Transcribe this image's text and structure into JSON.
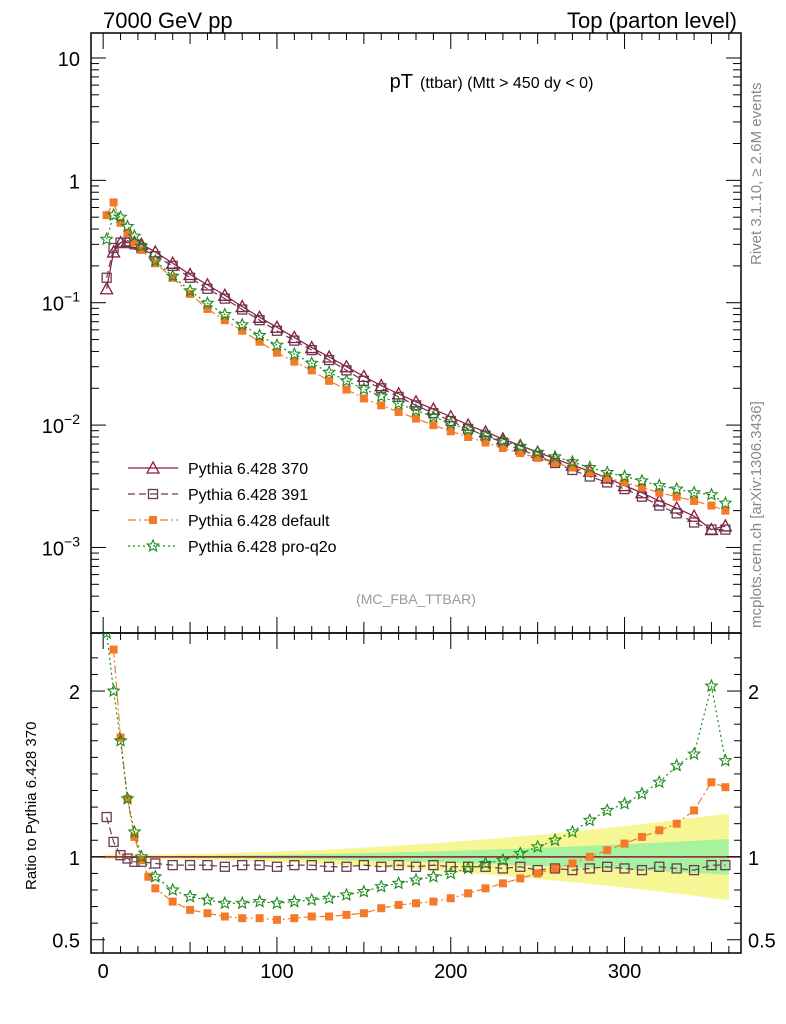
{
  "header": {
    "left": "7000 GeV pp",
    "right": "Top (parton level)"
  },
  "side": {
    "rivet": "Rivet 3.1.10, ≥ 2.6M events",
    "mcplots": "mcplots.cern.ch [arXiv:1306.3436]"
  },
  "chart_data": {
    "type": "line",
    "title_main": "pT",
    "title_sub": "(ttbar) (Mtt > 450 dy < 0)",
    "tag": "(MC_FBA_TTBAR)",
    "ratio_ylabel": "Ratio to Pythia 6.428 370",
    "main": {
      "yscale": "log",
      "ylim": [
        0.0002,
        16
      ],
      "yticks": [
        {
          "v": 10,
          "base": "10",
          "exp": ""
        },
        {
          "v": 1,
          "base": "1",
          "exp": ""
        },
        {
          "v": 0.1,
          "base": "10",
          "exp": "−1"
        },
        {
          "v": 0.01,
          "base": "10",
          "exp": "−2"
        },
        {
          "v": 0.001,
          "base": "10",
          "exp": "−3"
        }
      ]
    },
    "ratio": {
      "ylim": [
        0.42,
        2.35
      ],
      "yticks": [
        {
          "v": 0.5,
          "label": "0.5"
        },
        {
          "v": 1,
          "label": "1"
        },
        {
          "v": 2,
          "label": "2"
        }
      ],
      "reference": 1
    },
    "xlim": [
      -7,
      367
    ],
    "xticks": [
      {
        "v": 0,
        "label": "0"
      },
      {
        "v": 100,
        "label": "100"
      },
      {
        "v": 200,
        "label": "200"
      },
      {
        "v": 300,
        "label": "300"
      }
    ],
    "legend_position": "bottom-left",
    "series": [
      {
        "name": "Pythia 6.428 370",
        "color": "#8b1a3b",
        "marker": "triangle",
        "dash": "",
        "x": [
          2,
          6,
          10,
          14,
          18,
          22,
          30,
          40,
          50,
          60,
          70,
          80,
          90,
          100,
          110,
          120,
          130,
          140,
          150,
          160,
          170,
          180,
          190,
          200,
          210,
          220,
          230,
          240,
          250,
          260,
          270,
          280,
          290,
          300,
          310,
          320,
          330,
          340,
          350,
          358
        ],
        "y": [
          0.13,
          0.26,
          0.31,
          0.32,
          0.31,
          0.3,
          0.26,
          0.21,
          0.17,
          0.14,
          0.115,
          0.093,
          0.076,
          0.063,
          0.052,
          0.043,
          0.036,
          0.03,
          0.025,
          0.021,
          0.018,
          0.0155,
          0.0135,
          0.0117,
          0.01,
          0.0088,
          0.0077,
          0.0068,
          0.006,
          0.0053,
          0.0047,
          0.0042,
          0.0037,
          0.0032,
          0.0028,
          0.0024,
          0.0021,
          0.0018,
          0.0014,
          0.0015
        ]
      },
      {
        "name": "Pythia 6.428 391",
        "color": "#6b3a55",
        "marker": "square-open",
        "dash": "7,4",
        "x": [
          2,
          6,
          10,
          14,
          18,
          22,
          30,
          40,
          50,
          60,
          70,
          80,
          90,
          100,
          110,
          120,
          130,
          140,
          150,
          160,
          170,
          180,
          190,
          200,
          210,
          220,
          230,
          240,
          250,
          260,
          270,
          280,
          290,
          300,
          310,
          320,
          330,
          340,
          350,
          358
        ],
        "y": [
          0.16,
          0.28,
          0.31,
          0.31,
          0.3,
          0.28,
          0.24,
          0.2,
          0.16,
          0.13,
          0.108,
          0.088,
          0.072,
          0.059,
          0.049,
          0.041,
          0.034,
          0.028,
          0.023,
          0.02,
          0.017,
          0.0145,
          0.0125,
          0.0108,
          0.0093,
          0.0082,
          0.0072,
          0.0063,
          0.0056,
          0.0049,
          0.0043,
          0.0038,
          0.0034,
          0.003,
          0.0026,
          0.0022,
          0.0019,
          0.0016,
          0.0014,
          0.0014
        ]
      },
      {
        "name": "Pythia 6.428 default",
        "color": "#f47a2a",
        "marker": "square-filled",
        "dash": "8,3,2,3",
        "x": [
          2,
          6,
          10,
          14,
          18,
          22,
          30,
          40,
          50,
          60,
          70,
          80,
          90,
          100,
          110,
          120,
          130,
          140,
          150,
          160,
          170,
          180,
          190,
          200,
          210,
          220,
          230,
          240,
          250,
          260,
          270,
          280,
          290,
          300,
          310,
          320,
          330,
          340,
          350,
          358
        ],
        "y": [
          0.52,
          0.66,
          0.45,
          0.37,
          0.31,
          0.27,
          0.21,
          0.16,
          0.118,
          0.089,
          0.072,
          0.059,
          0.048,
          0.039,
          0.033,
          0.028,
          0.023,
          0.0195,
          0.0165,
          0.0145,
          0.0128,
          0.0113,
          0.01,
          0.0089,
          0.008,
          0.0072,
          0.0065,
          0.0059,
          0.0054,
          0.0049,
          0.0045,
          0.0041,
          0.0037,
          0.0034,
          0.0031,
          0.0028,
          0.0026,
          0.0024,
          0.0022,
          0.002
        ]
      },
      {
        "name": "Pythia 6.428 pro-q2o",
        "color": "#1e8a1e",
        "marker": "star",
        "dash": "2,3",
        "x": [
          2,
          6,
          10,
          14,
          18,
          22,
          30,
          40,
          50,
          60,
          70,
          80,
          90,
          100,
          110,
          120,
          130,
          140,
          150,
          160,
          170,
          180,
          190,
          200,
          210,
          220,
          230,
          240,
          250,
          260,
          270,
          280,
          290,
          300,
          310,
          320,
          330,
          340,
          350,
          358
        ],
        "y": [
          0.33,
          0.52,
          0.5,
          0.42,
          0.35,
          0.29,
          0.22,
          0.165,
          0.125,
          0.099,
          0.08,
          0.066,
          0.054,
          0.045,
          0.038,
          0.032,
          0.027,
          0.023,
          0.0197,
          0.0172,
          0.015,
          0.0132,
          0.0117,
          0.0103,
          0.0092,
          0.0082,
          0.0074,
          0.0067,
          0.006,
          0.0055,
          0.005,
          0.0045,
          0.0041,
          0.0038,
          0.0035,
          0.0032,
          0.003,
          0.0028,
          0.0027,
          0.0023
        ]
      }
    ],
    "ratio_series": [
      {
        "name": "Pythia 6.428 391",
        "x": [
          2,
          6,
          10,
          14,
          18,
          22,
          30,
          40,
          50,
          60,
          70,
          80,
          90,
          100,
          110,
          120,
          130,
          140,
          150,
          160,
          170,
          180,
          190,
          200,
          210,
          220,
          230,
          240,
          250,
          260,
          270,
          280,
          290,
          300,
          310,
          320,
          330,
          340,
          350,
          358
        ],
        "y": [
          1.24,
          1.09,
          1.01,
          0.99,
          0.97,
          0.97,
          0.96,
          0.95,
          0.95,
          0.95,
          0.94,
          0.95,
          0.95,
          0.94,
          0.95,
          0.95,
          0.94,
          0.94,
          0.95,
          0.94,
          0.95,
          0.94,
          0.95,
          0.94,
          0.94,
          0.94,
          0.93,
          0.94,
          0.92,
          0.93,
          0.92,
          0.93,
          0.94,
          0.93,
          0.92,
          0.94,
          0.93,
          0.92,
          0.95,
          0.95
        ]
      },
      {
        "name": "Pythia 6.428 default",
        "x": [
          6,
          10,
          14,
          18,
          22,
          26,
          30,
          40,
          50,
          60,
          70,
          80,
          90,
          100,
          110,
          120,
          130,
          140,
          150,
          160,
          170,
          180,
          190,
          200,
          210,
          220,
          230,
          240,
          250,
          260,
          270,
          280,
          290,
          300,
          310,
          320,
          330,
          340,
          350,
          358
        ],
        "y": [
          2.25,
          1.72,
          1.35,
          1.12,
          0.98,
          0.88,
          0.81,
          0.73,
          0.68,
          0.66,
          0.64,
          0.63,
          0.63,
          0.62,
          0.63,
          0.64,
          0.64,
          0.65,
          0.66,
          0.69,
          0.71,
          0.72,
          0.73,
          0.75,
          0.78,
          0.81,
          0.84,
          0.87,
          0.9,
          0.93,
          0.96,
          1.0,
          1.04,
          1.08,
          1.12,
          1.16,
          1.2,
          1.28,
          1.45,
          1.42
        ]
      },
      {
        "name": "Pythia 6.428 pro-q2o",
        "x": [
          2,
          6,
          10,
          14,
          18,
          22,
          30,
          40,
          50,
          60,
          70,
          80,
          90,
          100,
          110,
          120,
          130,
          140,
          150,
          160,
          170,
          180,
          190,
          200,
          210,
          220,
          230,
          240,
          250,
          260,
          270,
          280,
          290,
          300,
          310,
          320,
          330,
          340,
          350,
          358
        ],
        "y": [
          2.35,
          2.0,
          1.7,
          1.35,
          1.15,
          1.0,
          0.88,
          0.8,
          0.76,
          0.74,
          0.72,
          0.72,
          0.73,
          0.72,
          0.73,
          0.74,
          0.75,
          0.77,
          0.79,
          0.82,
          0.84,
          0.86,
          0.88,
          0.9,
          0.93,
          0.96,
          0.98,
          1.02,
          1.06,
          1.1,
          1.15,
          1.22,
          1.28,
          1.32,
          1.38,
          1.45,
          1.55,
          1.62,
          2.03,
          1.58
        ]
      }
    ]
  }
}
